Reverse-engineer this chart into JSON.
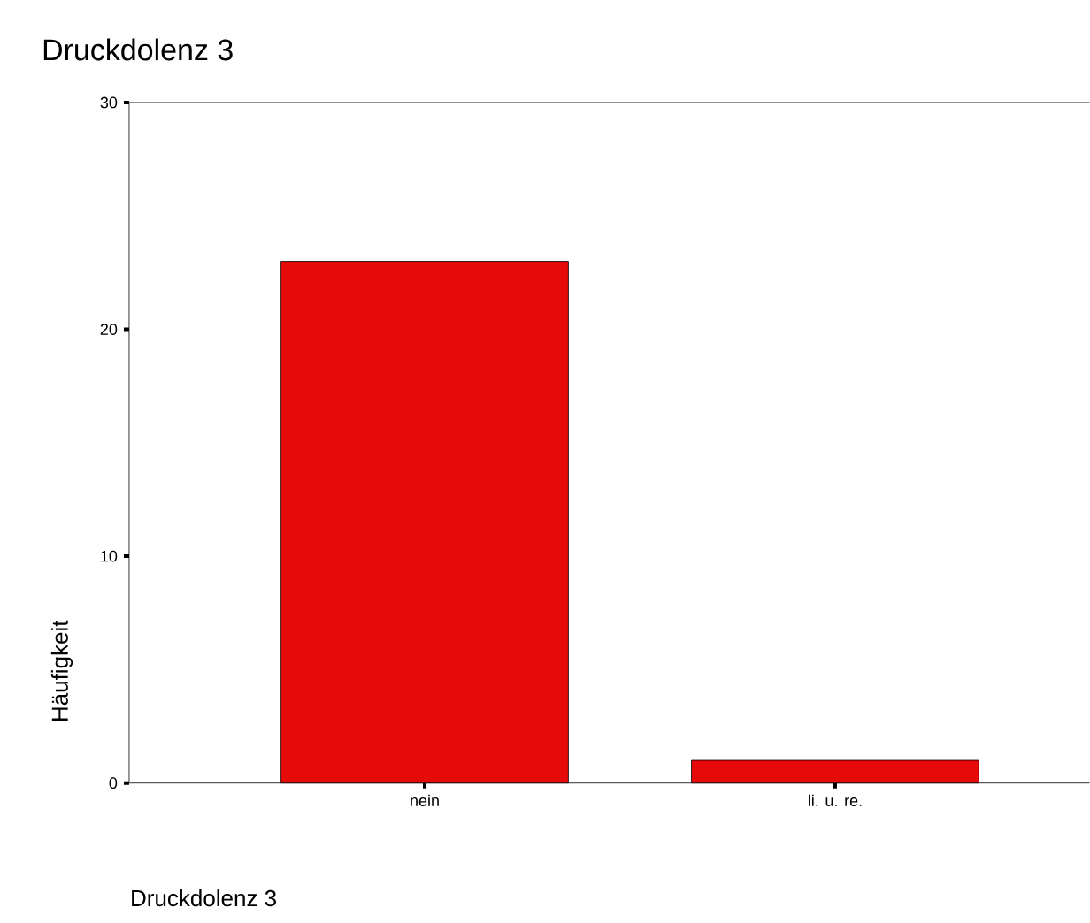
{
  "chart_data": {
    "type": "bar",
    "title": "Druckdolenz 3",
    "xlabel": "Druckdolenz 3",
    "ylabel": "Häufigkeit",
    "categories": [
      "nein",
      "li. u. re."
    ],
    "values": [
      23,
      1
    ],
    "color": "#e60a0a",
    "ylim": [
      0,
      30
    ],
    "yticks": [
      0,
      10,
      20,
      30
    ],
    "grid": false
  }
}
